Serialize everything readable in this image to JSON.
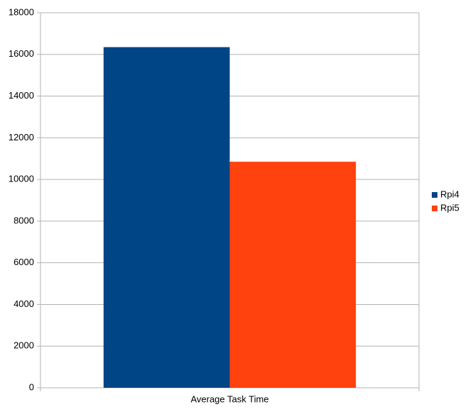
{
  "chart_data": {
    "type": "bar",
    "categories": [
      "Average Task Time"
    ],
    "series": [
      {
        "name": "Rpi4",
        "color": "#004586",
        "values": [
          16350
        ]
      },
      {
        "name": "Rpi5",
        "color": "#ff420e",
        "values": [
          10850
        ]
      }
    ],
    "ylim": [
      0,
      18000
    ],
    "yticks": [
      0,
      2000,
      4000,
      6000,
      8000,
      10000,
      12000,
      14000,
      16000,
      18000
    ],
    "grid": true,
    "legend": "right"
  }
}
